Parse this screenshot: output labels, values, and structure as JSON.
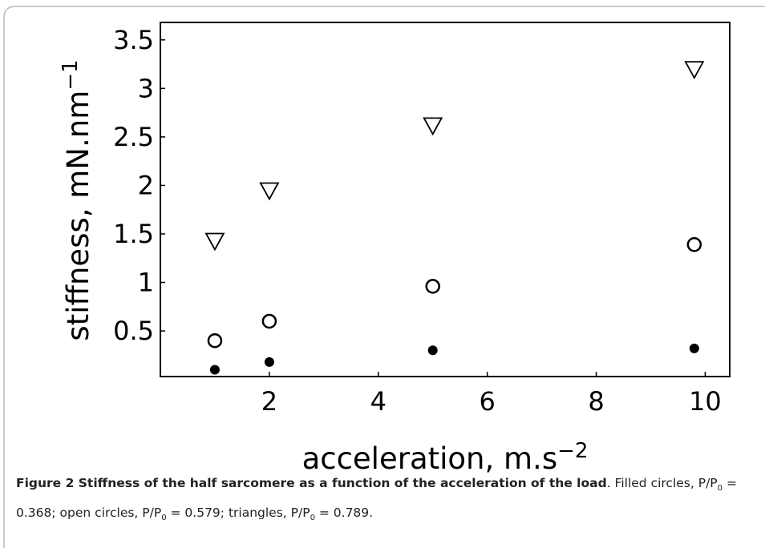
{
  "chart_data": {
    "type": "scatter",
    "x_label": "acceleration, m.s",
    "x_label_superscript": "−2",
    "y_label": "stiffness, mN.nm",
    "y_label_superscript": "−1",
    "xlim": [
      0,
      10.45
    ],
    "xticks": [
      2,
      4,
      6,
      8,
      10
    ],
    "ylim": [
      0.03,
      3.68
    ],
    "yticks": [
      0.5,
      1,
      1.5,
      2,
      2.5,
      3,
      3.5
    ],
    "series": [
      {
        "marker": "filled-circle",
        "color": "#000000",
        "x": [
          1,
          2,
          5,
          9.8
        ],
        "values": [
          0.1,
          0.18,
          0.3,
          0.32
        ]
      },
      {
        "marker": "open-circle",
        "color": "#000000",
        "x": [
          1,
          2,
          5,
          9.8
        ],
        "values": [
          0.4,
          0.6,
          0.96,
          1.39
        ]
      },
      {
        "marker": "open-triangle-down",
        "color": "#000000",
        "x": [
          1,
          2,
          5,
          9.8
        ],
        "values": [
          1.43,
          1.95,
          2.62,
          3.2
        ]
      }
    ]
  },
  "caption": {
    "bold": "Figure 2 Stiffness of the half sarcomere as a function of the acceleration of the load",
    "parts": [
      ". Filled circles, P/P",
      "0",
      " = 0.368; open circles, P/P",
      "0",
      " = 0.579; triangles, P/P",
      "0",
      " = 0.789."
    ]
  }
}
